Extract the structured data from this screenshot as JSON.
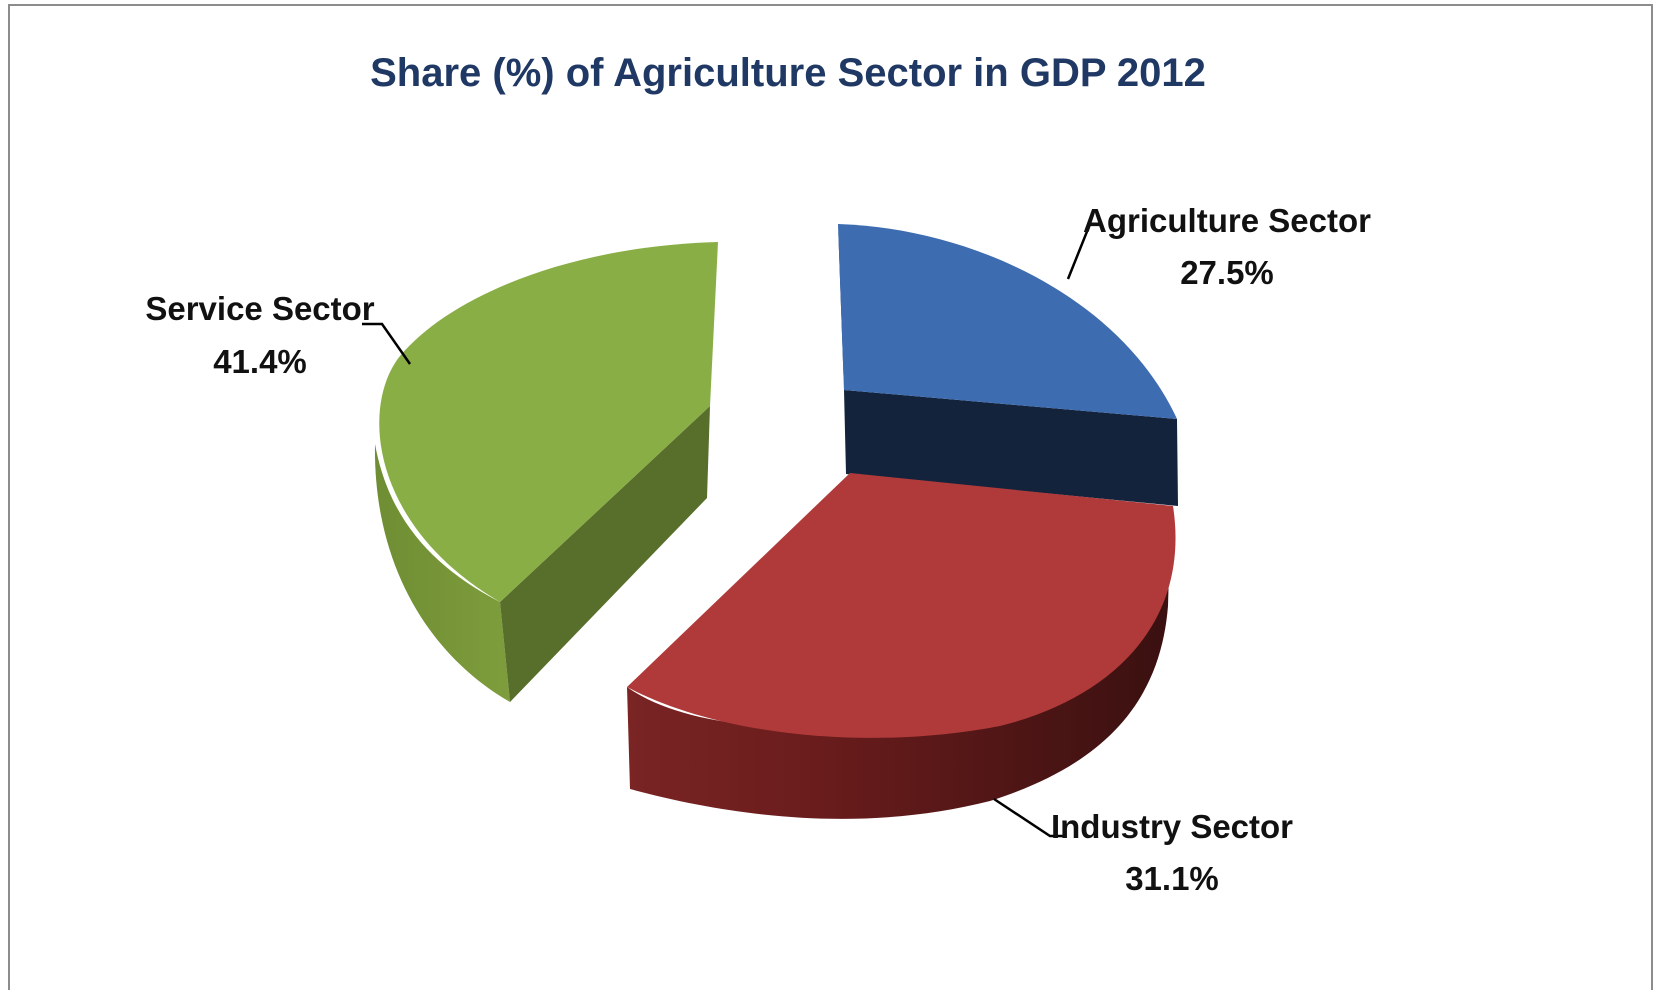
{
  "chart_data": {
    "type": "pie",
    "title": "Share (%) of Agriculture Sector in GDP 2012",
    "slices": [
      {
        "name": "Agriculture Sector",
        "value": 27.5,
        "value_label": "27.5%",
        "color": "#3d6cb0",
        "side_color": "#14233c"
      },
      {
        "name": "Industry Sector",
        "value": 31.1,
        "value_label": "31.1%",
        "color": "#b03a3a",
        "side_color": "#4a1414"
      },
      {
        "name": "Service Sector",
        "value": 41.4,
        "value_label": "41.4%",
        "color": "#8aae46",
        "side_color": "#586f2b"
      }
    ],
    "style": "3d-exploded",
    "legend": "none"
  }
}
